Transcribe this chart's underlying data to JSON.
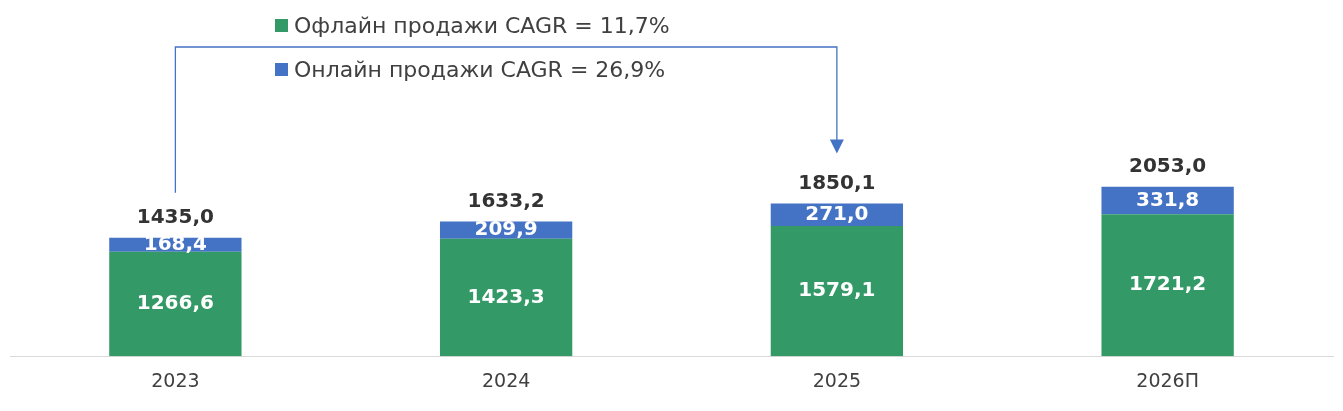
{
  "chart_data": {
    "type": "bar",
    "stacked": true,
    "categories": [
      "2023",
      "2024",
      "2025",
      "2026П"
    ],
    "series": [
      {
        "name": "Офлайн продажи CAGR = 11,7%",
        "color": "#339966",
        "values": [
          1266.6,
          1423.3,
          1579.1,
          1721.2
        ],
        "value_labels": [
          "1266,6",
          "1423,3",
          "1579,1",
          "1721,2"
        ]
      },
      {
        "name": "Онлайн продажи CAGR = 26,9%",
        "color": "#4472c4",
        "values": [
          168.4,
          209.9,
          271.0,
          331.8
        ],
        "value_labels": [
          "168,4",
          "209,9",
          "271,0",
          "331,8"
        ]
      }
    ],
    "totals": [
      "1435,0",
      "1633,2",
      "1850,1",
      "2053,0"
    ],
    "legend": "top",
    "grid": false
  }
}
